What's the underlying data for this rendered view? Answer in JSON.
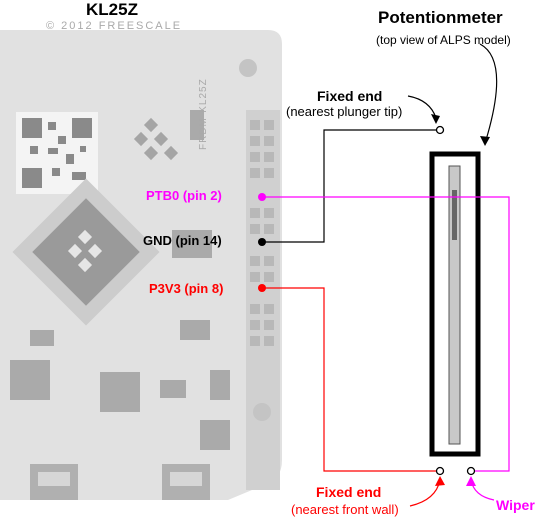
{
  "board": {
    "title": "KL25Z",
    "silk_top": "© 2012  FREESCALE",
    "silk_side": "FRDM-KL25Z"
  },
  "potentiometer": {
    "title": "Potentionmeter",
    "subtitle": "(top view of ALPS model)"
  },
  "pins": {
    "ptb0": {
      "label": "PTB0 (pin 2)",
      "color": "#ff00ff"
    },
    "gnd": {
      "label": "GND (pin 14)",
      "color": "#000000"
    },
    "p3v3": {
      "label": "P3V3 (pin 8)",
      "color": "#ff0000"
    }
  },
  "terminals": {
    "fixed_top": {
      "title": "Fixed end",
      "note": "(nearest plunger tip)",
      "color": "#000000"
    },
    "fixed_bottom": {
      "title": "Fixed end",
      "note": "(nearest front wall)",
      "color": "#ff0000"
    },
    "wiper": {
      "title": "Wiper",
      "color": "#ff00ff"
    }
  }
}
